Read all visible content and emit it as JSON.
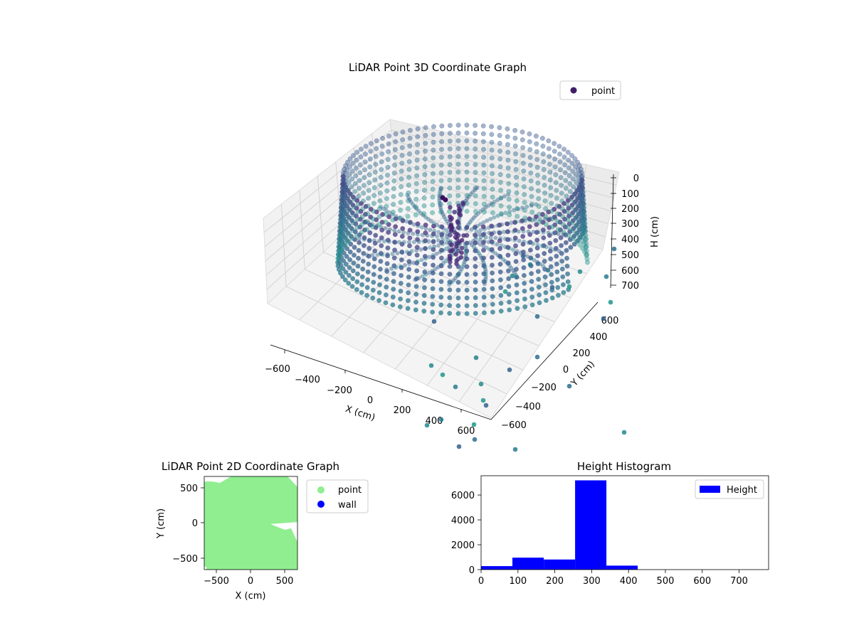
{
  "chart_data": [
    {
      "type": "scatter",
      "title": "LiDAR Point 3D Coordinate Graph",
      "xlabel": "X (cm)",
      "ylabel": "Y (cm)",
      "zlabel": "H (cm)",
      "x_ticks": [
        "−600",
        "−400",
        "−200",
        "0",
        "200",
        "400",
        "600"
      ],
      "y_ticks": [
        "−600",
        "−400",
        "−200",
        "0",
        "200",
        "400",
        "600"
      ],
      "z_ticks": [
        "0",
        "100",
        "200",
        "300",
        "400",
        "500",
        "600",
        "700"
      ],
      "z_inverted": true,
      "legend": {
        "placement": "top-right",
        "entries": [
          {
            "label": "point",
            "color": "#3f1f66"
          }
        ]
      },
      "colormap": "viridis",
      "description_values": {
        "ring_radius_cm": 600,
        "ring_height_range_cm": [
          250,
          450
        ]
      }
    },
    {
      "type": "scatter",
      "title": "LiDAR Point 2D Coordinate Graph",
      "xlabel": "X (cm)",
      "ylabel": "Y (cm)",
      "x_ticks": [
        "−500",
        "0",
        "500"
      ],
      "y_ticks": [
        "500",
        "0",
        "−500"
      ],
      "xlim": [
        -680,
        680
      ],
      "ylim": [
        -680,
        680
      ],
      "series": [
        {
          "name": "point",
          "color": "#90ee90"
        },
        {
          "name": "wall",
          "color": "#0000ff"
        }
      ],
      "legend": {
        "placement": "outside-right"
      }
    },
    {
      "type": "bar",
      "title": "Height Histogram",
      "series_name": "Height",
      "bar_color": "#0000ff",
      "bins": [
        {
          "start": 0,
          "end": 85,
          "count": 280
        },
        {
          "start": 85,
          "end": 170,
          "count": 960
        },
        {
          "start": 170,
          "end": 255,
          "count": 810
        },
        {
          "start": 255,
          "end": 340,
          "count": 7180
        },
        {
          "start": 340,
          "end": 425,
          "count": 320
        }
      ],
      "x_ticks": [
        "0",
        "100",
        "200",
        "300",
        "400",
        "500",
        "600",
        "700"
      ],
      "y_ticks": [
        "0",
        "2000",
        "4000",
        "6000"
      ],
      "xlim": [
        0,
        780
      ],
      "ylim": [
        0,
        7550
      ],
      "legend": {
        "placement": "top-right"
      }
    }
  ]
}
